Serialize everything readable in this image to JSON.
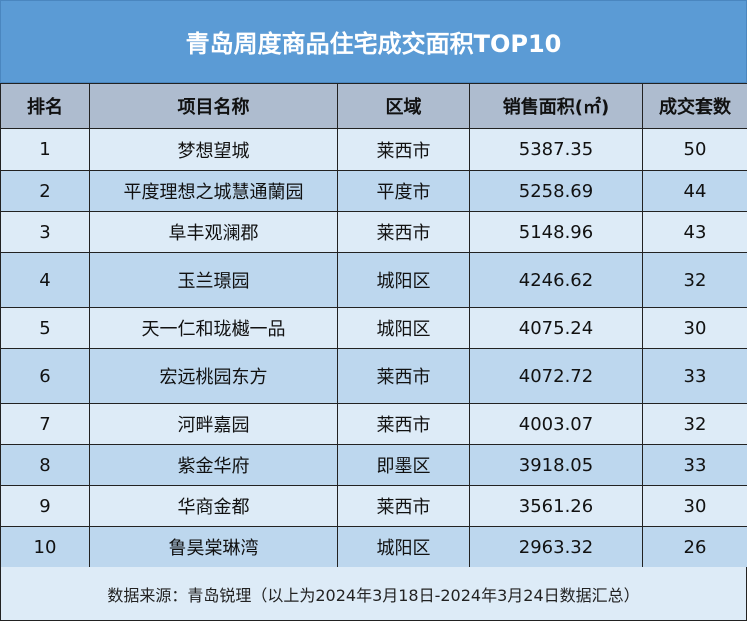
{
  "title": "青岛周度商品住宅成交面积TOP10",
  "columns": [
    "排名",
    "项目名称",
    "区域",
    "销售面积(㎡)",
    "成交套数"
  ],
  "rows": [
    [
      "1",
      "梦想望城",
      "莱西市",
      "5387.35",
      "50"
    ],
    [
      "2",
      "平度理想之城慧通蘭园",
      "平度市",
      "5258.69",
      "44"
    ],
    [
      "3",
      "阜丰观澜郡",
      "莱西市",
      "5148.96",
      "43"
    ],
    [
      "4",
      "玉兰璟园",
      "城阳区",
      "4246.62",
      "32"
    ],
    [
      "5",
      "天一仁和珑樾一品",
      "城阳区",
      "4075.24",
      "30"
    ],
    [
      "6",
      "宏远桃园东方",
      "莱西市",
      "4072.72",
      "33"
    ],
    [
      "7",
      "河畔嘉园",
      "莱西市",
      "4003.07",
      "32"
    ],
    [
      "8",
      "紫金华府",
      "即墨区",
      "3918.05",
      "33"
    ],
    [
      "9",
      "华商金都",
      "莱西市",
      "3561.26",
      "30"
    ],
    [
      "10",
      "鲁昊棠琳湾",
      "城阳区",
      "2963.32",
      "26"
    ]
  ],
  "footer": "数据来源：青岛锐理（以上为2024年3月18日-2024年3月24日数据汇总）",
  "colors": {
    "title_bg": "#5b9bd5",
    "header_bg": "#aebccf",
    "row_light": "#ddebf7",
    "row_dark": "#bdd7ee"
  }
}
